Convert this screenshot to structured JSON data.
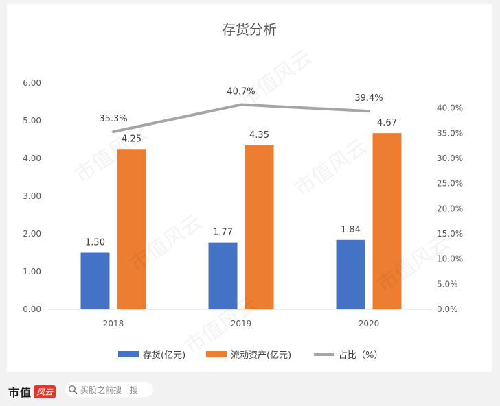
{
  "chart_data": {
    "type": "bar",
    "title": "存货分析",
    "categories": [
      "2018",
      "2019",
      "2020"
    ],
    "series": [
      {
        "name": "存货(亿元)",
        "type": "bar",
        "axis": "left",
        "color": "#4472c4",
        "values": [
          1.5,
          1.77,
          1.84
        ],
        "labels": [
          "1.50",
          "1.77",
          "1.84"
        ]
      },
      {
        "name": "流动资产(亿元)",
        "type": "bar",
        "axis": "left",
        "color": "#ed7d31",
        "values": [
          4.25,
          4.35,
          4.67
        ],
        "labels": [
          "4.25",
          "4.35",
          "4.67"
        ]
      },
      {
        "name": "占比（%）",
        "type": "line",
        "axis": "right",
        "color": "#a5a5a5",
        "values": [
          35.3,
          40.7,
          39.4
        ],
        "labels": [
          "35.3%",
          "40.7%",
          "39.4%"
        ]
      }
    ],
    "y_left": {
      "min": 0,
      "max": 6,
      "ticks": [
        "0.00",
        "1.00",
        "2.00",
        "3.00",
        "4.00",
        "5.00",
        "6.00"
      ]
    },
    "y_right": {
      "min": 0,
      "max": 45,
      "ticks": [
        "0.0%",
        "5.0%",
        "10.0%",
        "15.0%",
        "20.0%",
        "25.0%",
        "30.0%",
        "35.0%",
        "40.0%"
      ]
    },
    "legend_position": "bottom",
    "grid": false
  },
  "watermark_text": "市值风云",
  "footer": {
    "brand": "市值",
    "brand_badge": "风云",
    "search_placeholder": "买股之前搜一搜"
  }
}
